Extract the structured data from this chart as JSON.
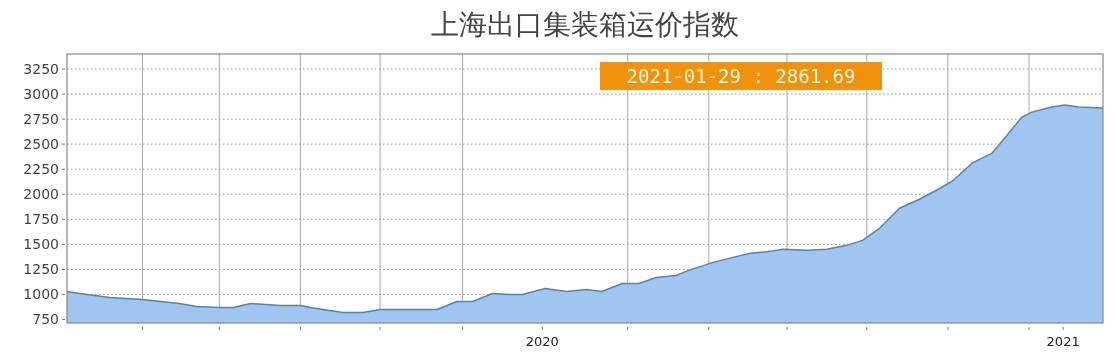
{
  "chart_data": {
    "type": "area",
    "title": "上海出口集装箱运价指数",
    "x": [
      "2019-02-01",
      "2019-02-10",
      "2019-03-03",
      "2019-03-26",
      "2019-04-21",
      "2019-05-03",
      "2019-05-19",
      "2019-05-29",
      "2019-06-10",
      "2019-06-21",
      "2019-07-01",
      "2019-07-15",
      "2019-07-22",
      "2019-07-31",
      "2019-08-14",
      "2019-08-28",
      "2019-09-09",
      "2019-10-19",
      "2019-11-02",
      "2019-11-13",
      "2019-11-27",
      "2019-12-09",
      "2019-12-18",
      "2020-01-03",
      "2020-01-18",
      "2020-02-01",
      "2020-02-12",
      "2020-02-26",
      "2020-03-09",
      "2020-03-21",
      "2020-04-04",
      "2020-04-13",
      "2020-04-30",
      "2020-05-14",
      "2020-05-26",
      "2020-06-09",
      "2020-06-18",
      "2020-07-05",
      "2020-07-19",
      "2020-08-02",
      "2020-08-13",
      "2020-08-25",
      "2020-09-08",
      "2020-09-22",
      "2020-10-04",
      "2020-10-15",
      "2020-10-29",
      "2020-11-12",
      "2020-11-22",
      "2020-12-03",
      "2020-12-10",
      "2020-12-24",
      "2021-01-02",
      "2021-01-12",
      "2021-01-29"
    ],
    "series": [
      {
        "color": "#9fc5f0",
        "values": [
          1030,
          1010,
          970,
          950,
          910,
          880,
          870,
          870,
          910,
          900,
          890,
          890,
          870,
          850,
          820,
          820,
          850,
          850,
          930,
          930,
          1010,
          1000,
          1000,
          1060,
          1030,
          1050,
          1030,
          1110,
          1110,
          1170,
          1190,
          1240,
          1320,
          1370,
          1410,
          1430,
          1450,
          1440,
          1450,
          1490,
          1540,
          1660,
          1860,
          1950,
          2040,
          2130,
          2310,
          2410,
          2580,
          2770,
          2820,
          2870,
          2890,
          2870,
          2861.69
        ]
      }
    ],
    "xlim": [
      "2019-02-01",
      "2021-01-29"
    ],
    "ylim": [
      715,
      3400
    ],
    "xticks": [
      {
        "value": "2019-03-26",
        "label": null
      },
      {
        "value": "2019-05-19",
        "label": null
      },
      {
        "value": "2019-07-15",
        "label": null
      },
      {
        "value": "2019-09-09",
        "label": null
      },
      {
        "value": "2019-11-06",
        "label": null
      },
      {
        "value": "2020-01-01",
        "label": "2020"
      },
      {
        "value": "2020-03-01",
        "label": null
      },
      {
        "value": "2020-04-27",
        "label": null
      },
      {
        "value": "2020-06-21",
        "label": null
      },
      {
        "value": "2020-08-16",
        "label": null
      },
      {
        "value": "2020-10-12",
        "label": null
      },
      {
        "value": "2020-12-08",
        "label": null
      },
      {
        "value": "2021-01-01",
        "label": "2021"
      }
    ],
    "yticks": [
      750,
      1000,
      1250,
      1500,
      1750,
      2000,
      2250,
      2500,
      2750,
      3000,
      3250
    ],
    "grid": true,
    "annotations": [
      "2021-01-29 : 2861.69"
    ]
  }
}
